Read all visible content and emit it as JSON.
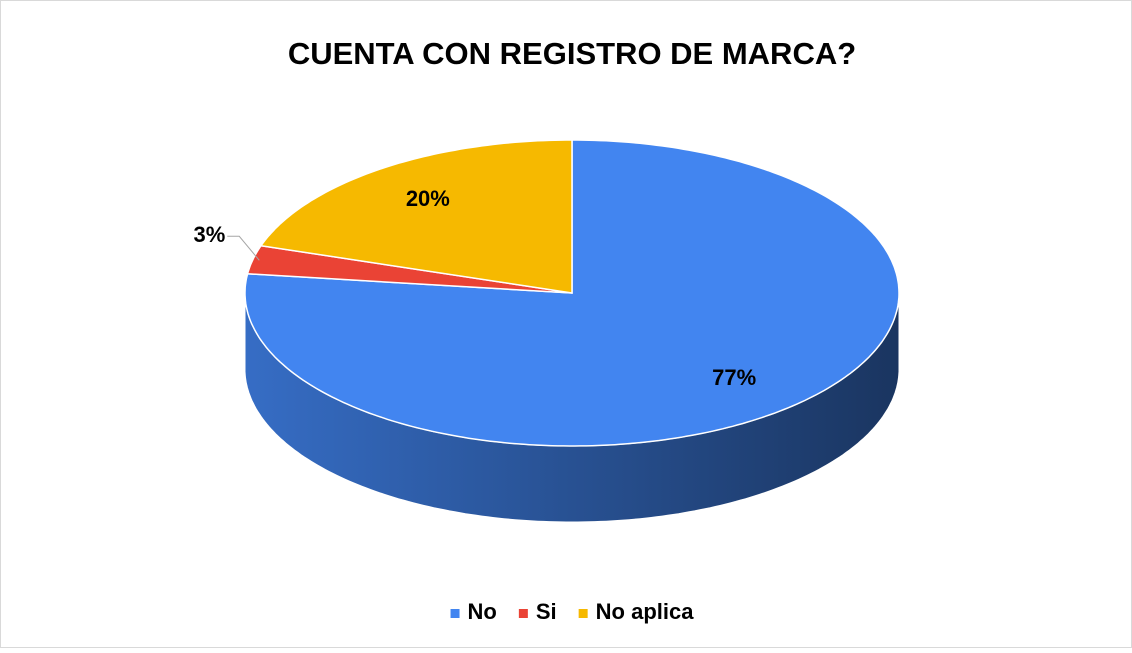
{
  "chart_data": {
    "type": "pie",
    "title": "CUENTA CON REGISTRO DE MARCA?",
    "categories": [
      "No",
      "Si",
      "No aplica"
    ],
    "values": [
      77,
      3,
      20
    ],
    "value_labels": [
      "77%",
      "3%",
      "20%"
    ],
    "colors": [
      "#4285f0",
      "#ea4335",
      "#f6b900"
    ],
    "legend": "bottom"
  }
}
